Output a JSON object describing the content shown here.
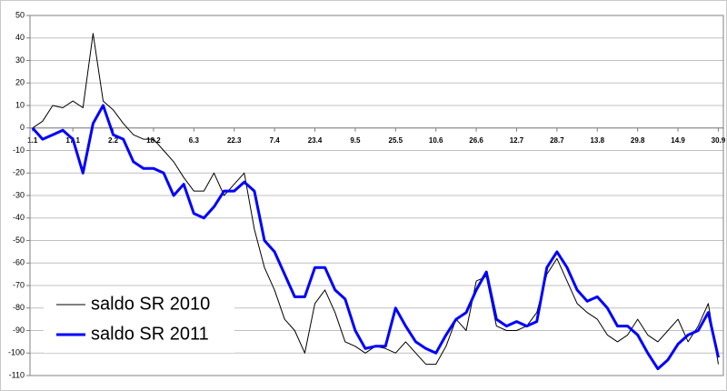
{
  "chart_data": {
    "type": "line",
    "x": [
      1,
      5,
      9,
      13,
      17,
      21,
      25,
      29,
      33,
      37,
      41,
      45,
      49,
      53,
      57,
      61,
      65,
      69,
      73,
      77,
      81,
      85,
      89,
      93,
      97,
      101,
      105,
      109,
      113,
      117,
      121,
      125,
      129,
      133,
      137,
      141,
      145,
      149,
      153,
      157,
      161,
      165,
      169,
      173,
      177,
      181,
      185,
      189,
      193,
      197,
      201,
      205,
      209,
      213,
      217,
      221,
      225,
      229,
      233,
      237,
      241,
      245,
      249,
      253,
      257,
      261,
      265,
      269,
      273
    ],
    "xlim": [
      0,
      275
    ],
    "xticks": [
      {
        "value": 1,
        "label": "1.1"
      },
      {
        "value": 17,
        "label": "17.1"
      },
      {
        "value": 33,
        "label": "2.2"
      },
      {
        "value": 49,
        "label": "18.2"
      },
      {
        "value": 65,
        "label": "6.3"
      },
      {
        "value": 81,
        "label": "22.3"
      },
      {
        "value": 97,
        "label": "7.4"
      },
      {
        "value": 113,
        "label": "23.4"
      },
      {
        "value": 129,
        "label": "9.5"
      },
      {
        "value": 145,
        "label": "25.5"
      },
      {
        "value": 161,
        "label": "10.6"
      },
      {
        "value": 177,
        "label": "26.6"
      },
      {
        "value": 193,
        "label": "12.7"
      },
      {
        "value": 209,
        "label": "28.7"
      },
      {
        "value": 225,
        "label": "13.8"
      },
      {
        "value": 241,
        "label": "29.8"
      },
      {
        "value": 257,
        "label": "14.9"
      },
      {
        "value": 273,
        "label": "30.9"
      }
    ],
    "ylim": [
      -110,
      50
    ],
    "yticks": [
      -110,
      -100,
      -90,
      -80,
      -70,
      -60,
      -50,
      -40,
      -30,
      -20,
      -10,
      0,
      10,
      20,
      30,
      40,
      50
    ],
    "grid": true,
    "legend": "lower-left",
    "series": [
      {
        "name": "saldo SR 2010",
        "color": "#000000",
        "width": 1,
        "values": [
          0,
          3,
          10,
          9,
          12,
          9,
          42,
          12,
          8,
          2,
          -3,
          -5,
          -5,
          -10,
          -15,
          -22,
          -28,
          -28,
          -20,
          -30,
          -25,
          -20,
          -45,
          -62,
          -72,
          -85,
          -90,
          -100,
          -78,
          -72,
          -82,
          -95,
          -97,
          -100,
          -97,
          -98,
          -100,
          -95,
          -100,
          -105,
          -105,
          -97,
          -85,
          -90,
          -68,
          -66,
          -88,
          -90,
          -90,
          -88,
          -82,
          -65,
          -58,
          -68,
          -78,
          -82,
          -85,
          -92,
          -95,
          -92,
          -85,
          -92,
          -95,
          -90,
          -85,
          -95,
          -88,
          -78,
          -105
        ]
      },
      {
        "name": "saldo SR 2011",
        "color": "#0000ff",
        "width": 3,
        "values": [
          0,
          -5,
          -3,
          -1,
          -5,
          -20,
          2,
          10,
          -3,
          -5,
          -15,
          -18,
          -18,
          -20,
          -30,
          -25,
          -38,
          -40,
          -35,
          -28,
          -28,
          -24,
          -28,
          -50,
          -55,
          -65,
          -75,
          -75,
          -62,
          -62,
          -72,
          -76,
          -90,
          -98,
          -97,
          -97,
          -80,
          -88,
          -95,
          -98,
          -100,
          -92,
          -85,
          -82,
          -72,
          -64,
          -85,
          -88,
          -86,
          -88,
          -86,
          -62,
          -55,
          -62,
          -72,
          -77,
          -75,
          -80,
          -88,
          -88,
          -92,
          -100,
          -107,
          -103,
          -96,
          -92,
          -90,
          -82,
          -102
        ]
      }
    ]
  }
}
